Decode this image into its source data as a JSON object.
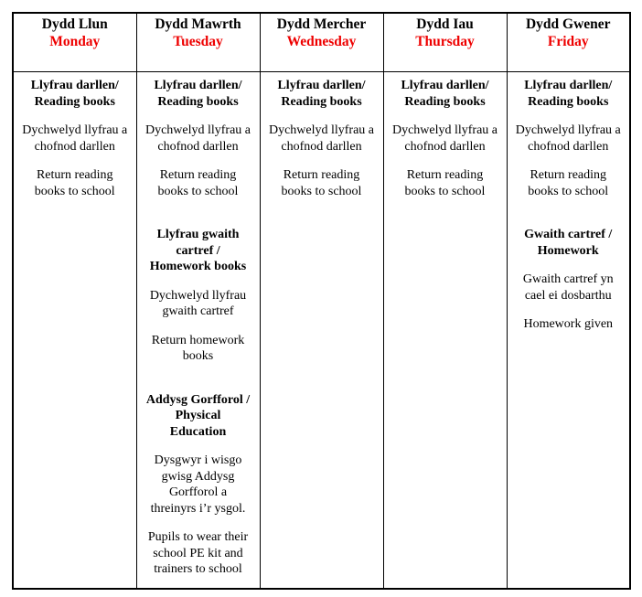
{
  "colors": {
    "day_english_red": "#ee0000",
    "text": "#000000",
    "border": "#000000",
    "background": "#ffffff"
  },
  "timetable": {
    "columns": [
      {
        "id": "monday",
        "day_welsh": "Dydd Llun",
        "day_english": "Monday",
        "blocks": [
          {
            "bold": true,
            "gap": "none",
            "text": "Llyfrau darllen/\nReading books"
          },
          {
            "bold": false,
            "gap": "normal",
            "text": "Dychwelyd llyfrau a\nchofnod darllen"
          },
          {
            "bold": false,
            "gap": "normal",
            "text": "Return reading\nbooks to school"
          }
        ]
      },
      {
        "id": "tuesday",
        "day_welsh": "Dydd Mawrth",
        "day_english": "Tuesday",
        "blocks": [
          {
            "bold": true,
            "gap": "none",
            "text": "Llyfrau darllen/\nReading books"
          },
          {
            "bold": false,
            "gap": "normal",
            "text": "Dychwelyd llyfrau a\nchofnod darllen"
          },
          {
            "bold": false,
            "gap": "normal",
            "text": "Return reading\nbooks to school"
          },
          {
            "bold": true,
            "gap": "large",
            "text": "Llyfrau gwaith\ncartref /\nHomework books"
          },
          {
            "bold": false,
            "gap": "normal",
            "text": "Dychwelyd llyfrau\ngwaith cartref"
          },
          {
            "bold": false,
            "gap": "normal",
            "text": "Return homework\nbooks"
          },
          {
            "bold": true,
            "gap": "large",
            "text": "Addysg Gorfforol /\nPhysical\nEducation"
          },
          {
            "bold": false,
            "gap": "normal",
            "text": "Dysgwyr i wisgo\ngwisg Addysg\nGorfforol a\nthreinyrs i’r ysgol."
          },
          {
            "bold": false,
            "gap": "normal",
            "text": "Pupils to wear their\nschool PE kit and\ntrainers to school"
          }
        ]
      },
      {
        "id": "wednesday",
        "day_welsh": "Dydd Mercher",
        "day_english": "Wednesday",
        "blocks": [
          {
            "bold": true,
            "gap": "none",
            "text": "Llyfrau darllen/\nReading books"
          },
          {
            "bold": false,
            "gap": "normal",
            "text": "Dychwelyd llyfrau a\nchofnod darllen"
          },
          {
            "bold": false,
            "gap": "normal",
            "text": "Return reading\nbooks to school"
          }
        ]
      },
      {
        "id": "thursday",
        "day_welsh": "Dydd Iau",
        "day_english": "Thursday",
        "blocks": [
          {
            "bold": true,
            "gap": "none",
            "text": "Llyfrau darllen/\nReading books"
          },
          {
            "bold": false,
            "gap": "normal",
            "text": "Dychwelyd llyfrau a\nchofnod darllen"
          },
          {
            "bold": false,
            "gap": "normal",
            "text": "Return reading\nbooks to school"
          }
        ]
      },
      {
        "id": "friday",
        "day_welsh": "Dydd Gwener",
        "day_english": "Friday",
        "blocks": [
          {
            "bold": true,
            "gap": "none",
            "text": "Llyfrau darllen/\nReading books"
          },
          {
            "bold": false,
            "gap": "normal",
            "text": "Dychwelyd llyfrau a\nchofnod darllen"
          },
          {
            "bold": false,
            "gap": "normal",
            "text": "Return reading\nbooks to school"
          },
          {
            "bold": true,
            "gap": "large",
            "text": "Gwaith cartref /\nHomework"
          },
          {
            "bold": false,
            "gap": "normal",
            "text": "Gwaith cartref yn\ncael ei dosbarthu"
          },
          {
            "bold": false,
            "gap": "normal",
            "text": "Homework given"
          }
        ]
      }
    ]
  }
}
